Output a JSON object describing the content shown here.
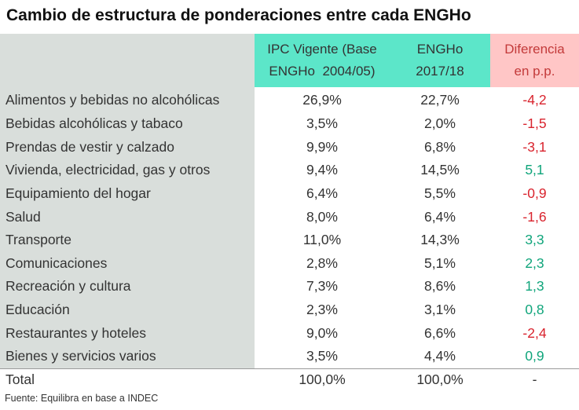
{
  "title": "Cambio de estructura de ponderaciones entre cada ENGHo",
  "headers": {
    "col1_line1": "IPC Vigente (Base",
    "col1_line2": "ENGHo  2004/05)",
    "col2_line1": "ENGHo",
    "col2_line2": "2017/18",
    "col3_line1": "Diferencia",
    "col3_line2": "en p.p."
  },
  "colors": {
    "teal_header": "#5ce6c9",
    "pink_header": "#ffc6c6",
    "category_bg": "#d9dedb",
    "negative": "#d9232d",
    "positive": "#10a57b"
  },
  "rows": [
    {
      "category": "Alimentos y bebidas no alcohólicas",
      "ipc": "26,9%",
      "engho": "22,7%",
      "diff": "-4,2",
      "sign": "neg"
    },
    {
      "category": "Bebidas alcohólicas y tabaco",
      "ipc": "3,5%",
      "engho": "2,0%",
      "diff": "-1,5",
      "sign": "neg"
    },
    {
      "category": "Prendas de vestir y calzado",
      "ipc": "9,9%",
      "engho": "6,8%",
      "diff": "-3,1",
      "sign": "neg"
    },
    {
      "category": "Vivienda, electricidad, gas y otros",
      "ipc": "9,4%",
      "engho": "14,5%",
      "diff": "5,1",
      "sign": "pos"
    },
    {
      "category": "Equipamiento del hogar",
      "ipc": "6,4%",
      "engho": "5,5%",
      "diff": "-0,9",
      "sign": "neg"
    },
    {
      "category": "Salud",
      "ipc": "8,0%",
      "engho": "6,4%",
      "diff": "-1,6",
      "sign": "neg"
    },
    {
      "category": "Transporte",
      "ipc": "11,0%",
      "engho": "14,3%",
      "diff": "3,3",
      "sign": "pos"
    },
    {
      "category": "Comunicaciones",
      "ipc": "2,8%",
      "engho": "5,1%",
      "diff": "2,3",
      "sign": "pos"
    },
    {
      "category": "Recreación y cultura",
      "ipc": "7,3%",
      "engho": "8,6%",
      "diff": "1,3",
      "sign": "pos"
    },
    {
      "category": "Educación",
      "ipc": "2,3%",
      "engho": "3,1%",
      "diff": "0,8",
      "sign": "pos"
    },
    {
      "category": "Restaurantes y hoteles",
      "ipc": "9,0%",
      "engho": "6,6%",
      "diff": "-2,4",
      "sign": "neg"
    },
    {
      "category": "Bienes y servicios varios",
      "ipc": "3,5%",
      "engho": "4,4%",
      "diff": "0,9",
      "sign": "pos"
    }
  ],
  "total": {
    "label": "Total",
    "ipc": "100,0%",
    "engho": "100,0%",
    "diff": "-"
  },
  "source": "Fuente: Equilibra en base a INDEC"
}
